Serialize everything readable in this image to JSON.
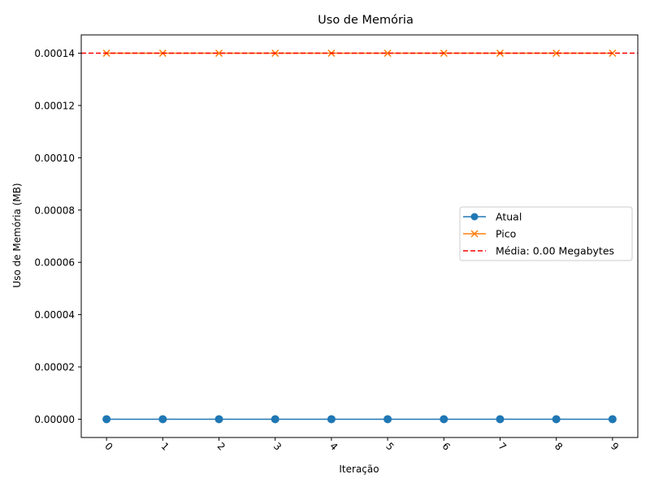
{
  "chart_data": {
    "type": "line",
    "title": "Uso de Memória",
    "xlabel": "Iteração",
    "ylabel": "Uso de Memória (MB)",
    "x": [
      0,
      1,
      2,
      3,
      4,
      5,
      6,
      7,
      8,
      9
    ],
    "x_tick_labels": [
      "0",
      "1",
      "2",
      "3",
      "4",
      "5",
      "6",
      "7",
      "8",
      "9"
    ],
    "y_ticks": [
      0.0,
      2e-05,
      4e-05,
      6e-05,
      8e-05,
      0.0001,
      0.00012,
      0.00014
    ],
    "y_tick_labels": [
      "0.00000",
      "0.00002",
      "0.00004",
      "0.00006",
      "0.00008",
      "0.00010",
      "0.00012",
      "0.00014"
    ],
    "xlim": [
      -0.45,
      9.45
    ],
    "ylim": [
      -7e-06,
      0.000147
    ],
    "x_tick_rotation": "45 degrees",
    "grid": false,
    "legend_position": "center-right",
    "series": [
      {
        "name": "Atual",
        "values": [
          0,
          0,
          0,
          0,
          0,
          0,
          0,
          0,
          0,
          0
        ],
        "color": "#1f77b4",
        "marker": "circle"
      },
      {
        "name": "Pico",
        "values": [
          0.00014,
          0.00014,
          0.00014,
          0.00014,
          0.00014,
          0.00014,
          0.00014,
          0.00014,
          0.00014,
          0.00014
        ],
        "color": "#ff7f0e",
        "marker": "x"
      }
    ],
    "reference_line": {
      "name": "Média: 0.00 Megabytes",
      "value": 0.00014,
      "color": "#ff0000",
      "style": "dashed"
    }
  }
}
